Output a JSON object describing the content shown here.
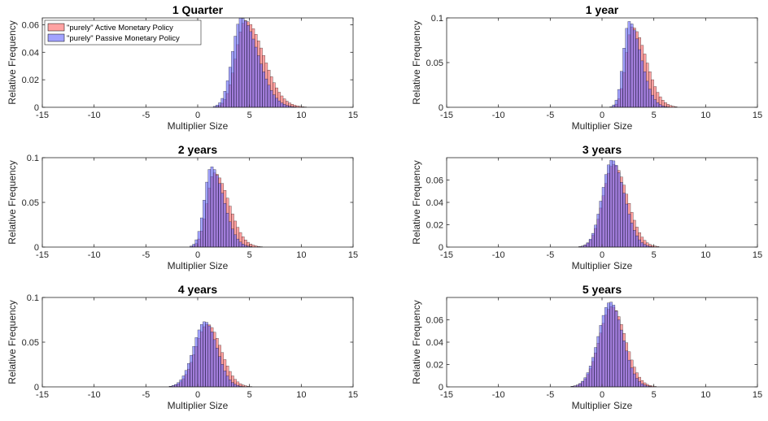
{
  "colors": {
    "active": "#ff6464",
    "passive": "#6464ff",
    "overlap": "#7b2ac4"
  },
  "legend": {
    "active_label": "\"purely\" Active Monetary Policy",
    "passive_label": "\"purely\" Passive Monetary Policy",
    "placement": "top-left of first panel"
  },
  "chart_data": [
    {
      "type": "bar",
      "title": "1 Quarter",
      "xlabel": "Multiplier Size",
      "ylabel": "Relative Frequency",
      "xlim": [
        -15,
        15
      ],
      "ylim": [
        0,
        0.065
      ],
      "xticks": [
        -15,
        -10,
        -5,
        0,
        5,
        10,
        15
      ],
      "yticks": [
        0,
        0.02,
        0.04,
        0.06
      ],
      "ytick_labels": [
        "0",
        "0.02",
        "0.04",
        "0.06"
      ],
      "series": [
        {
          "name": "\"purely\" Active Monetary Policy",
          "mean": 4.6,
          "sd_left": 0.9,
          "sd_right": 1.75,
          "peak": 0.063
        },
        {
          "name": "\"purely\" Passive Monetary Policy",
          "mean": 4.2,
          "sd_left": 0.85,
          "sd_right": 1.6,
          "peak": 0.065
        }
      ]
    },
    {
      "type": "bar",
      "title": "1 year",
      "xlabel": "Multiplier Size",
      "ylabel": "Relative Frequency",
      "xlim": [
        -15,
        15
      ],
      "ylim": [
        0,
        0.1
      ],
      "xticks": [
        -15,
        -10,
        -5,
        0,
        5,
        10,
        15
      ],
      "yticks": [
        0,
        0.05,
        0.1
      ],
      "ytick_labels": [
        "0",
        "0.05",
        "0.1"
      ],
      "series": [
        {
          "name": "\"purely\" Active Monetary Policy",
          "mean": 2.9,
          "sd_left": 0.6,
          "sd_right": 1.35,
          "peak": 0.09
        },
        {
          "name": "\"purely\" Passive Monetary Policy",
          "mean": 2.6,
          "sd_left": 0.55,
          "sd_right": 1.15,
          "peak": 0.096
        }
      ]
    },
    {
      "type": "bar",
      "title": "2 years",
      "xlabel": "Multiplier Size",
      "ylabel": "Relative Frequency",
      "xlim": [
        -15,
        15
      ],
      "ylim": [
        0,
        0.1
      ],
      "xticks": [
        -15,
        -10,
        -5,
        0,
        5,
        10,
        15
      ],
      "yticks": [
        0,
        0.05,
        0.1
      ],
      "ytick_labels": [
        "0",
        "0.05",
        "0.1"
      ],
      "series": [
        {
          "name": "\"purely\" Active Monetary Policy",
          "mean": 1.6,
          "sd_left": 0.7,
          "sd_right": 1.4,
          "peak": 0.083
        },
        {
          "name": "\"purely\" Passive Monetary Policy",
          "mean": 1.3,
          "sd_left": 0.65,
          "sd_right": 1.2,
          "peak": 0.09
        }
      ]
    },
    {
      "type": "bar",
      "title": "3 years",
      "xlabel": "Multiplier Size",
      "ylabel": "Relative Frequency",
      "xlim": [
        -15,
        15
      ],
      "ylim": [
        0,
        0.08
      ],
      "xticks": [
        -15,
        -10,
        -5,
        0,
        5,
        10,
        15
      ],
      "yticks": [
        0,
        0.02,
        0.04,
        0.06
      ],
      "ytick_labels": [
        "0",
        "0.02",
        "0.04",
        "0.06"
      ],
      "series": [
        {
          "name": "\"purely\" Active Monetary Policy",
          "mean": 1.1,
          "sd_left": 1.0,
          "sd_right": 1.35,
          "peak": 0.074
        },
        {
          "name": "\"purely\" Passive Monetary Policy",
          "mean": 0.95,
          "sd_left": 0.95,
          "sd_right": 1.2,
          "peak": 0.078
        }
      ]
    },
    {
      "type": "bar",
      "title": "4 years",
      "xlabel": "Multiplier Size",
      "ylabel": "Relative Frequency",
      "xlim": [
        -15,
        15
      ],
      "ylim": [
        0,
        0.1
      ],
      "xticks": [
        -15,
        -10,
        -5,
        0,
        5,
        10,
        15
      ],
      "yticks": [
        0,
        0.05,
        0.1
      ],
      "ytick_labels": [
        "0",
        "0.05",
        "0.1"
      ],
      "series": [
        {
          "name": "\"purely\" Active Monetary Policy",
          "mean": 0.95,
          "sd_left": 1.15,
          "sd_right": 1.3,
          "peak": 0.07
        },
        {
          "name": "\"purely\" Passive Monetary Policy",
          "mean": 0.7,
          "sd_left": 1.1,
          "sd_right": 1.15,
          "peak": 0.073
        }
      ]
    },
    {
      "type": "bar",
      "title": "5 years",
      "xlabel": "Multiplier Size",
      "ylabel": "Relative Frequency",
      "xlim": [
        -15,
        15
      ],
      "ylim": [
        0,
        0.08
      ],
      "xticks": [
        -15,
        -10,
        -5,
        0,
        5,
        10,
        15
      ],
      "yticks": [
        0,
        0.02,
        0.04,
        0.06
      ],
      "ytick_labels": [
        "0",
        "0.02",
        "0.04",
        "0.06"
      ],
      "series": [
        {
          "name": "\"purely\" Active Monetary Policy",
          "mean": 0.95,
          "sd_left": 1.2,
          "sd_right": 1.3,
          "peak": 0.072
        },
        {
          "name": "\"purely\" Passive Monetary Policy",
          "mean": 0.8,
          "sd_left": 1.15,
          "sd_right": 1.2,
          "peak": 0.076
        }
      ]
    }
  ]
}
